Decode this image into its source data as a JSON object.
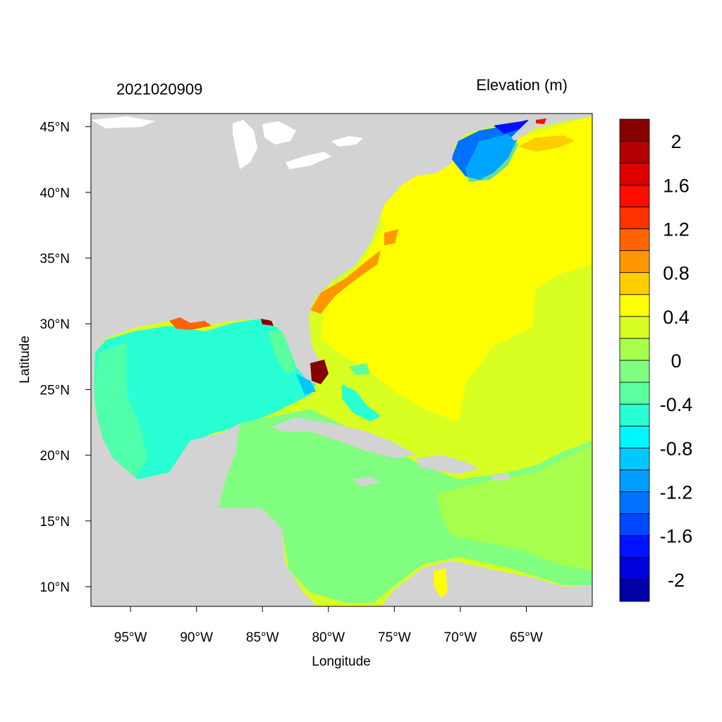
{
  "header": {
    "timestamp": "2021020909",
    "variable": "Elevation (m)"
  },
  "axes": {
    "xlabel": "Longitude",
    "ylabel": "Latitude",
    "xlim": [
      -98,
      -60
    ],
    "ylim": [
      8.5,
      46
    ],
    "x_ticks": [
      {
        "value": -95,
        "label": "95°W"
      },
      {
        "value": -90,
        "label": "90°W"
      },
      {
        "value": -85,
        "label": "85°W"
      },
      {
        "value": -80,
        "label": "80°W"
      },
      {
        "value": -75,
        "label": "75°W"
      },
      {
        "value": -70,
        "label": "70°W"
      },
      {
        "value": -65,
        "label": "65°W"
      }
    ],
    "y_ticks": [
      {
        "value": 45,
        "label": "45°N"
      },
      {
        "value": 40,
        "label": "40°N"
      },
      {
        "value": 35,
        "label": "35°N"
      },
      {
        "value": 30,
        "label": "30°N"
      },
      {
        "value": 25,
        "label": "25°N"
      },
      {
        "value": 20,
        "label": "20°N"
      },
      {
        "value": 15,
        "label": "15°N"
      },
      {
        "value": 10,
        "label": "10°N"
      }
    ]
  },
  "colorbar": {
    "colors": [
      "#0000a8",
      "#0000dc",
      "#0012ff",
      "#0048ff",
      "#0072ff",
      "#009cff",
      "#00c8ff",
      "#00f6ff",
      "#28ffd4",
      "#5aff9e",
      "#80ff80",
      "#a6ff4c",
      "#d8ff22",
      "#ffff00",
      "#ffce00",
      "#ff9800",
      "#ff6400",
      "#ff3200",
      "#ff0c00",
      "#e00000",
      "#b40000",
      "#860000"
    ],
    "labels": [
      {
        "value": 2,
        "text": "2"
      },
      {
        "value": 1.6,
        "text": "1.6"
      },
      {
        "value": 1.2,
        "text": "1.2"
      },
      {
        "value": 0.8,
        "text": "0.8"
      },
      {
        "value": 0.4,
        "text": "0.4"
      },
      {
        "value": 0,
        "text": "0"
      },
      {
        "value": -0.4,
        "text": "-0.4"
      },
      {
        "value": -0.8,
        "text": "-0.8"
      },
      {
        "value": -1.2,
        "text": "-1.2"
      },
      {
        "value": -1.6,
        "text": "-1.6"
      },
      {
        "value": -2,
        "text": "-2"
      }
    ]
  },
  "colors": {
    "land": "#d3d3d3",
    "lakes": "#ffffff",
    "atlantic_high": "#ffff00",
    "atlantic_low": "#d8ff22",
    "gulf": "#28ffd4",
    "caribbean": "#80ff80",
    "gulf_of_maine_neg": "#0072ff",
    "florida_surge": "#860000"
  }
}
